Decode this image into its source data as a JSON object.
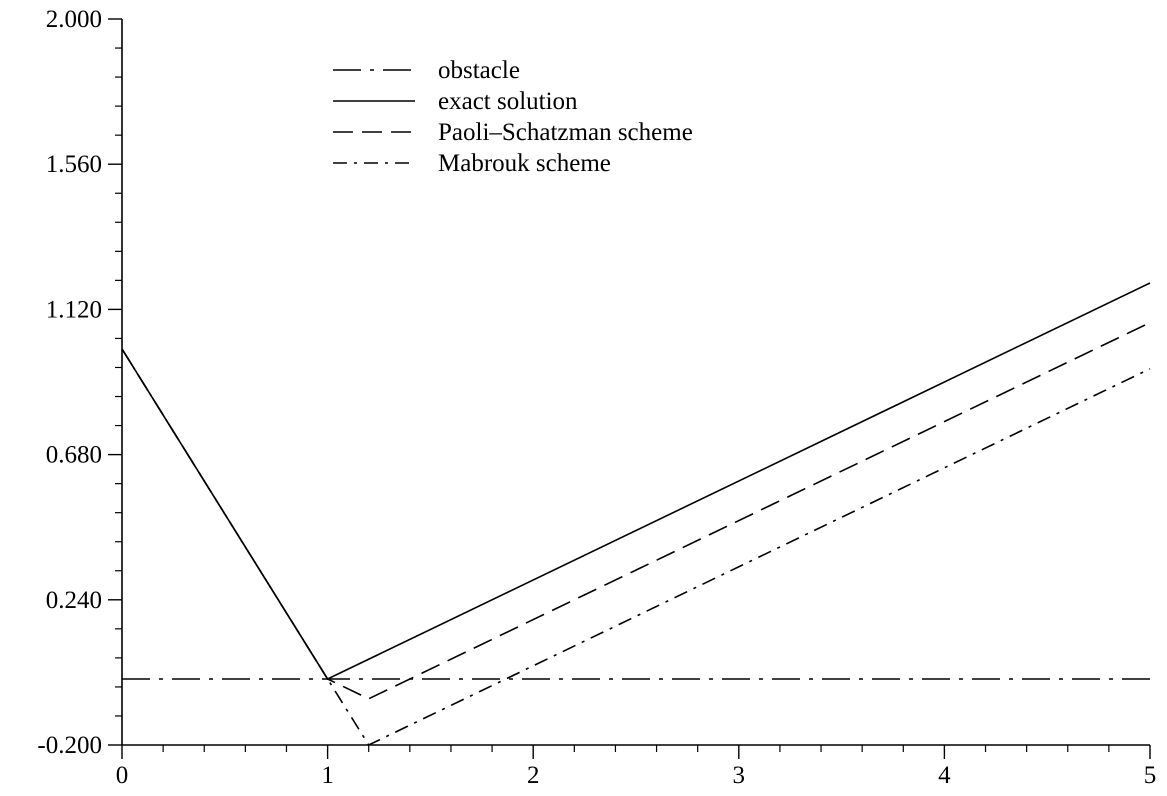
{
  "chart_data": {
    "type": "line",
    "title": "",
    "xlabel": "",
    "ylabel": "",
    "xlim": [
      0,
      5
    ],
    "ylim": [
      -0.2,
      2.0
    ],
    "x_ticks": [
      0,
      1,
      2,
      3,
      4,
      5
    ],
    "x_tick_labels": [
      "0",
      "1",
      "2",
      "3",
      "4",
      "5"
    ],
    "y_ticks": [
      -0.2,
      0.24,
      0.68,
      1.12,
      1.56,
      2.0
    ],
    "y_tick_labels": [
      "-0.200",
      "0.240",
      "0.680",
      "1.120",
      "1.560",
      "2.000"
    ],
    "grid": false,
    "legend_position": "top-center",
    "series": [
      {
        "name": "obstacle",
        "style": "dash-dot-long",
        "color": "#000000",
        "x": [
          0,
          5
        ],
        "y": [
          0,
          0
        ]
      },
      {
        "name": "exact solution",
        "style": "solid",
        "color": "#000000",
        "x": [
          0,
          1,
          5
        ],
        "y": [
          1.0,
          0.0,
          1.2
        ]
      },
      {
        "name": "Paoli–Schatzman scheme",
        "style": "dashed",
        "color": "#000000",
        "x": [
          0,
          1,
          1.2,
          5
        ],
        "y": [
          1.0,
          0.0,
          -0.06,
          1.08
        ]
      },
      {
        "name": "Mabrouk scheme",
        "style": "dash-dot",
        "color": "#000000",
        "x": [
          0,
          1,
          1.2,
          5
        ],
        "y": [
          1.0,
          0.0,
          -0.2,
          0.94
        ]
      }
    ]
  }
}
